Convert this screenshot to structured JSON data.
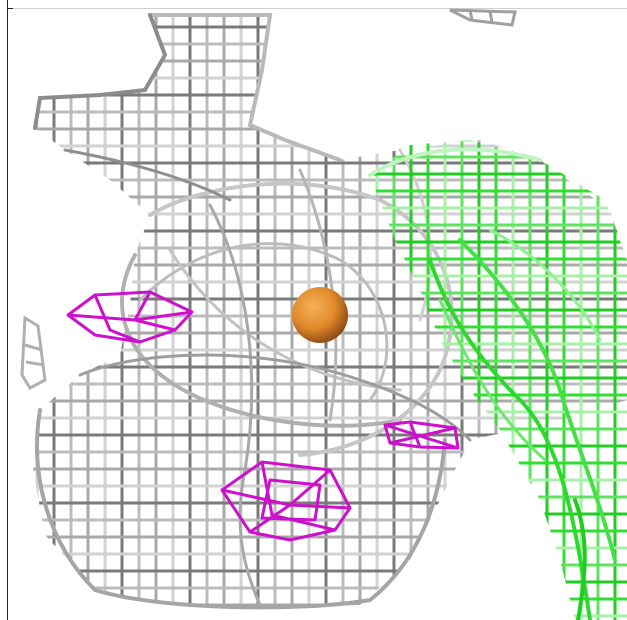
{
  "scene": {
    "kind": "electron-density-mesh",
    "background": "#ffffff",
    "colors": {
      "mesh_main": "#a9a9a9",
      "mesh_main_light": "#d2d2d2",
      "mesh_main_dark": "#7a7a7a",
      "mesh_green": "#33dd33",
      "mesh_green_light": "#a8f0a8",
      "mesh_magenta": "#cc11cc",
      "atom_sphere": "#e08a2a",
      "atom_sphere_shade": "#a9561a"
    },
    "objects": [
      {
        "name": "gray-density-mesh",
        "color_key": "mesh_main"
      },
      {
        "name": "green-density-mesh",
        "color_key": "mesh_green"
      },
      {
        "name": "magenta-density-blob",
        "count": 3,
        "color_key": "mesh_magenta"
      },
      {
        "name": "orange-atom-sphere",
        "color_key": "atom_sphere"
      }
    ]
  }
}
